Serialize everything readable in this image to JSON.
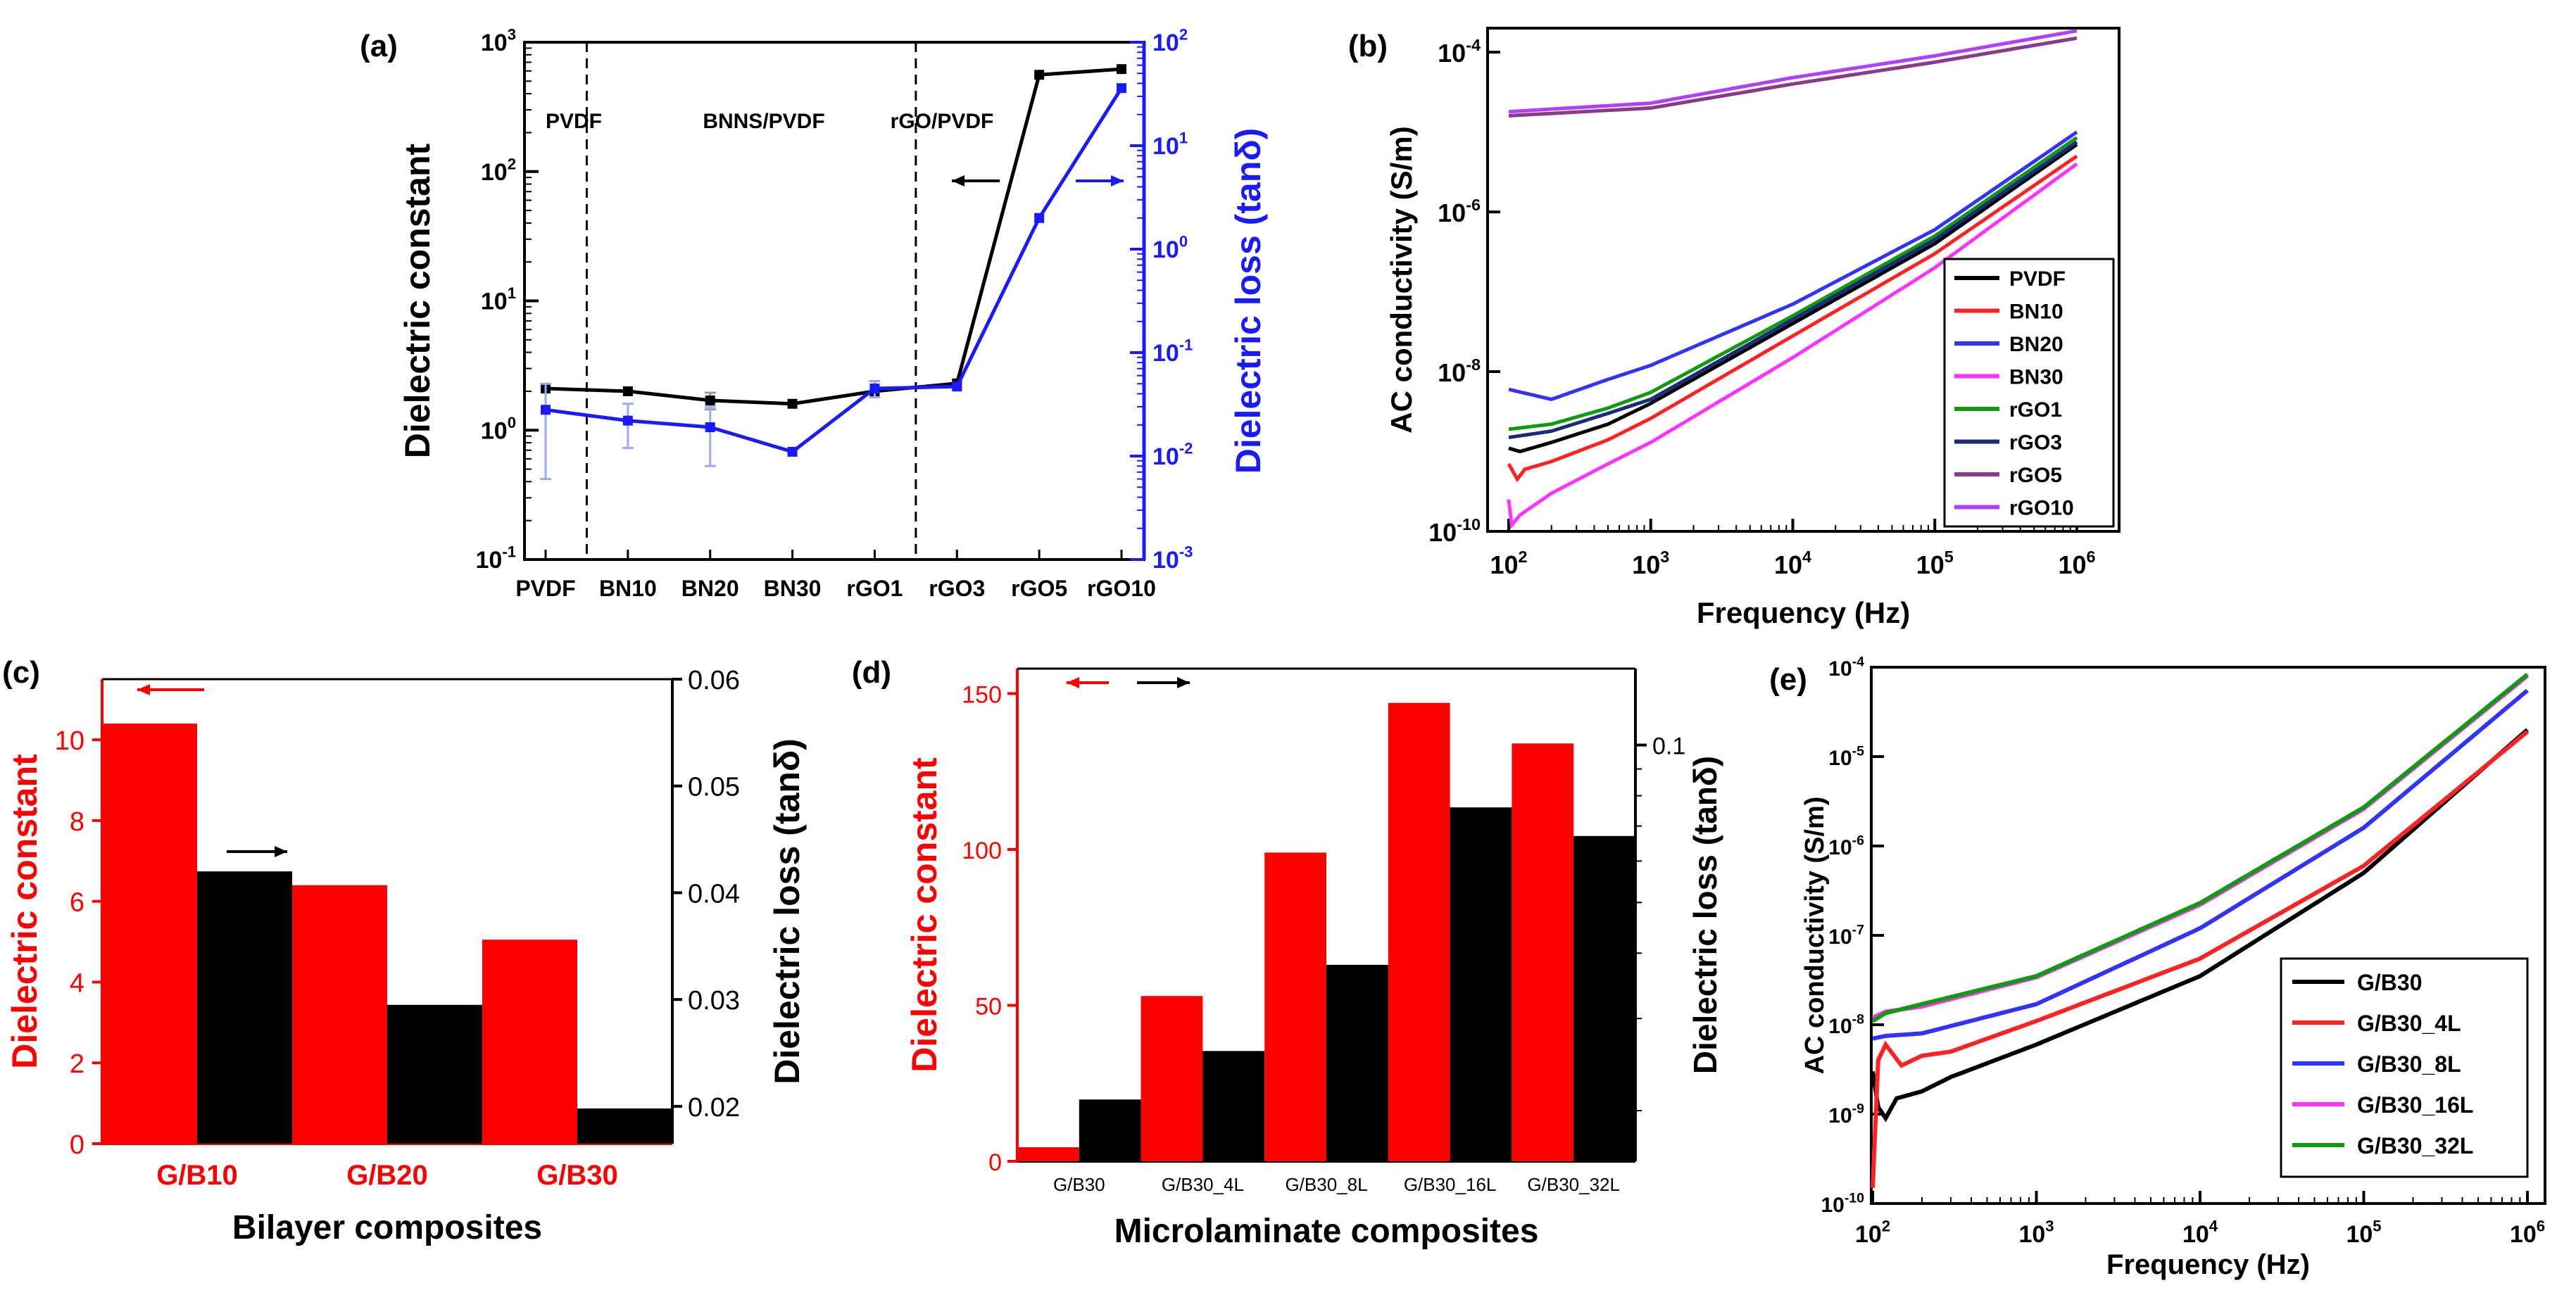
{
  "chart_data": [
    {
      "panel": "(a)",
      "type": "line",
      "categories": [
        "PVDF",
        "BN10",
        "BN20",
        "BN30",
        "rGO1",
        "rGO3",
        "rGO5",
        "rGO10"
      ],
      "series": [
        {
          "name": "Dielectric constant",
          "axis": "left",
          "color": "#000000",
          "values": [
            2.1,
            2.0,
            1.7,
            1.6,
            2.0,
            2.3,
            560,
            620
          ],
          "err": [
            0,
            0,
            0.25,
            0,
            0,
            0,
            0,
            0
          ]
        },
        {
          "name": "Dielectric loss (tanδ)",
          "axis": "right",
          "color": "#1a1aff",
          "values": [
            0.028,
            0.022,
            0.019,
            0.011,
            0.045,
            0.047,
            2.0,
            36
          ],
          "err": [
            0.022,
            0.01,
            0.011,
            0,
            0.008,
            0,
            0,
            0
          ]
        }
      ],
      "ylabel": "Dielectric constant",
      "y2label": "Dielectric loss (tanδ)",
      "ylim": [
        0.1,
        1000
      ],
      "y2lim": [
        0.001,
        100
      ],
      "yscale": "log",
      "region_labels": [
        "PVDF",
        "BNNS/PVDF",
        "rGO/PVDF"
      ],
      "yticks": [
        "10",
        "10",
        "10",
        "10",
        "10"
      ],
      "yexps": [
        "-1",
        "0",
        "1",
        "2",
        "3"
      ],
      "y2ticks": [
        "10",
        "10",
        "10",
        "10",
        "10",
        "10"
      ],
      "y2exps": [
        "-3",
        "-2",
        "-1",
        "0",
        "1",
        "2"
      ]
    },
    {
      "panel": "(b)",
      "type": "line",
      "xlabel": "Frequency (Hz)",
      "ylabel": "AC conductivity (S/m)",
      "xscale": "log",
      "yscale": "log",
      "xlim": [
        100,
        1000000
      ],
      "ylim": [
        1e-10,
        0.0002
      ],
      "xticks": [
        "10",
        "10",
        "10",
        "10",
        "10"
      ],
      "xexps": [
        "2",
        "3",
        "4",
        "5",
        "6"
      ],
      "yticks": [
        "10",
        "10",
        "10",
        "10"
      ],
      "yexps": [
        "-10",
        "-8",
        "-6",
        "-4"
      ],
      "series": [
        {
          "name": "PVDF",
          "color": "#000000",
          "x": [
            100,
            120,
            200,
            500,
            1000,
            10000,
            100000,
            1000000
          ],
          "y": [
            1.1e-09,
            1e-09,
            1.3e-09,
            2.2e-09,
            4e-09,
            4e-08,
            4e-07,
            7e-06
          ]
        },
        {
          "name": "BN10",
          "color": "#ff2222",
          "x": [
            100,
            115,
            130,
            200,
            500,
            1000,
            10000,
            100000,
            1000000
          ],
          "y": [
            7e-10,
            4.5e-10,
            6e-10,
            7.5e-10,
            1.4e-09,
            2.6e-09,
            2.8e-08,
            3e-07,
            5e-06
          ]
        },
        {
          "name": "BN20",
          "color": "#3333ff",
          "x": [
            100,
            200,
            500,
            1000,
            10000,
            100000,
            1000000
          ],
          "y": [
            6e-09,
            4.5e-09,
            8e-09,
            1.2e-08,
            7e-08,
            6e-07,
            1e-05
          ]
        },
        {
          "name": "BN30",
          "color": "#ff33ff",
          "x": [
            100,
            105,
            120,
            200,
            500,
            1000,
            10000,
            100000,
            1000000
          ],
          "y": [
            2.5e-10,
            1.2e-10,
            1.6e-10,
            3e-10,
            7e-10,
            1.3e-09,
            1.5e-08,
            2e-07,
            4e-06
          ]
        },
        {
          "name": "rGO1",
          "color": "#119911",
          "x": [
            100,
            200,
            500,
            1000,
            10000,
            100000,
            1000000
          ],
          "y": [
            1.9e-09,
            2.2e-09,
            3.5e-09,
            5.5e-09,
            5e-08,
            5e-07,
            8.5e-06
          ]
        },
        {
          "name": "rGO3",
          "color": "#1c2a7a",
          "x": [
            100,
            200,
            500,
            1000,
            10000,
            100000,
            1000000
          ],
          "y": [
            1.5e-09,
            1.8e-09,
            3e-09,
            4.5e-09,
            4.5e-08,
            4.5e-07,
            7.5e-06
          ]
        },
        {
          "name": "rGO5",
          "color": "#8a3a8a",
          "x": [
            100,
            1000,
            10000,
            100000,
            1000000
          ],
          "y": [
            1.6e-05,
            2e-05,
            4e-05,
            7.5e-05,
            0.00015
          ]
        },
        {
          "name": "rGO10",
          "color": "#b040ff",
          "x": [
            100,
            1000,
            10000,
            100000,
            1000000
          ],
          "y": [
            1.8e-05,
            2.3e-05,
            4.8e-05,
            9e-05,
            0.000185
          ]
        }
      ]
    },
    {
      "panel": "(c)",
      "type": "bar",
      "xlabel": "Bilayer composites",
      "ylabel": "Dielectric constant",
      "y2label": "Dielectric loss (tanδ)",
      "categories": [
        "G/B10",
        "G/B20",
        "G/B30"
      ],
      "series": [
        {
          "name": "Dielectric constant",
          "axis": "left",
          "color": "#ff0000",
          "values": [
            10.4,
            6.4,
            5.05
          ]
        },
        {
          "name": "Dielectric loss (tanδ)",
          "axis": "right",
          "color": "#000000",
          "values": [
            0.042,
            0.0295,
            0.0198
          ]
        }
      ],
      "ylim": [
        0,
        11.5
      ],
      "y2lim": [
        0.0165,
        0.06
      ],
      "yticks": [
        "0",
        "2",
        "4",
        "6",
        "8",
        "10"
      ],
      "y2ticks": [
        "0.02",
        "0.03",
        "0.04",
        "0.05",
        "0.06"
      ]
    },
    {
      "panel": "(d)",
      "type": "bar",
      "xlabel": "Microlaminate composites",
      "ylabel": "Dielectric constant",
      "y2label": "Dielectric loss (tanδ)",
      "categories": [
        "G/B30",
        "G/B30_4L",
        "G/B30_8L",
        "G/B30_16L",
        "G/B30_32L"
      ],
      "series": [
        {
          "name": "Dielectric constant",
          "axis": "left",
          "color": "#ff0000",
          "values": [
            4.5,
            53,
            99,
            147,
            134
          ]
        },
        {
          "name": "Dielectric loss (tanδ)",
          "axis": "right",
          "color": "#000000",
          "values": [
            0.021,
            0.026,
            0.038,
            0.076,
            0.067
          ]
        }
      ],
      "ylim": [
        0,
        158
      ],
      "y2lim": [
        0.016,
        0.14
      ],
      "y2scale": "log",
      "yticks": [
        "0",
        "50",
        "100",
        "150"
      ],
      "y2ticks": [
        "0.1"
      ]
    },
    {
      "panel": "(e)",
      "type": "line",
      "xlabel": "Frequency (Hz)",
      "ylabel": "AC conductivity (S/m)",
      "xscale": "log",
      "yscale": "log",
      "xlim": [
        100,
        1000000
      ],
      "ylim": [
        1e-10,
        0.0001
      ],
      "xticks": [
        "10",
        "10",
        "10",
        "10",
        "10"
      ],
      "xexps": [
        "2",
        "3",
        "4",
        "5",
        "6"
      ],
      "yticks": [
        "10",
        "10",
        "10",
        "10",
        "10",
        "10",
        "10"
      ],
      "yexps": [
        "-10",
        "-9",
        "-8",
        "-7",
        "-6",
        "-5",
        "-4"
      ],
      "series": [
        {
          "name": "G/B30",
          "color": "#000000",
          "x": [
            100,
            108,
            120,
            140,
            200,
            300,
            1000,
            10000,
            100000,
            1000000
          ],
          "y": [
            3e-09,
            1.2e-09,
            9e-10,
            1.5e-09,
            1.8e-09,
            2.6e-09,
            6e-09,
            3.5e-08,
            5e-07,
            2e-05
          ]
        },
        {
          "name": "G/B30_4L",
          "color": "#ff2222",
          "x": [
            100,
            108,
            120,
            150,
            200,
            300,
            1000,
            10000,
            100000,
            1000000
          ],
          "y": [
            1.5e-10,
            4e-09,
            6e-09,
            3.5e-09,
            4.5e-09,
            5e-09,
            1.1e-08,
            5.5e-08,
            6e-07,
            1.9e-05
          ]
        },
        {
          "name": "G/B30_8L",
          "color": "#3333ff",
          "x": [
            100,
            120,
            200,
            1000,
            10000,
            100000,
            1000000
          ],
          "y": [
            7e-09,
            7.5e-09,
            8e-09,
            1.7e-08,
            1.2e-07,
            1.6e-06,
            5.5e-05
          ]
        },
        {
          "name": "G/B30_16L",
          "color": "#ff33ff",
          "x": [
            100,
            120,
            200,
            1000,
            10000,
            100000,
            1000000
          ],
          "y": [
            1.2e-08,
            1.4e-08,
            1.6e-08,
            3.4e-08,
            2.2e-07,
            2.6e-06,
            8e-05
          ]
        },
        {
          "name": "G/B30_32L",
          "color": "#119911",
          "x": [
            100,
            120,
            200,
            1000,
            10000,
            100000,
            1000000
          ],
          "y": [
            1.1e-08,
            1.35e-08,
            1.7e-08,
            3.5e-08,
            2.3e-07,
            2.7e-06,
            8.3e-05
          ]
        }
      ]
    }
  ]
}
